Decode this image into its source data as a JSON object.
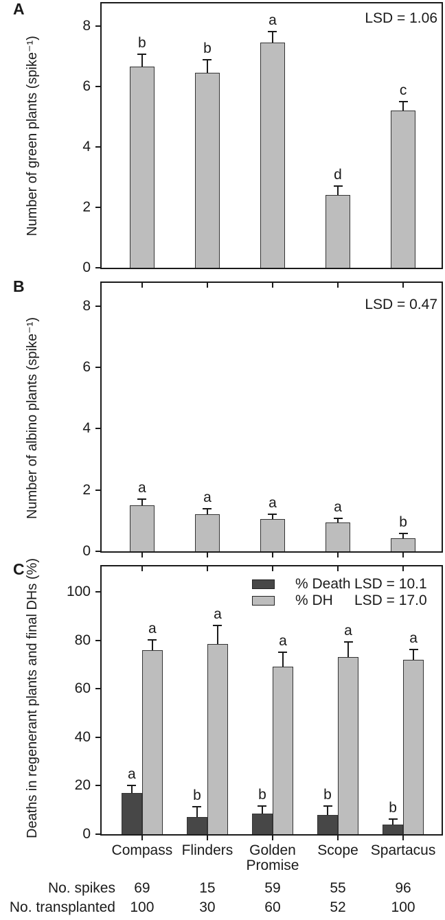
{
  "figure": {
    "panel_letters": [
      "A",
      "B",
      "C"
    ],
    "colors": {
      "bar_light": "#bdbdbd",
      "bar_dark": "#474747",
      "bar_border": "#333333",
      "axis": "#1a1a1a",
      "background": "#ffffff"
    }
  },
  "chart_data": [
    {
      "type": "bar",
      "panel": "A",
      "ylabel": "Number of green plants (spike⁻¹)",
      "annotation": "LSD = 1.06",
      "categories": [
        "Compass",
        "Flinders",
        "Golden Promise",
        "Scope",
        "Spartacus"
      ],
      "values": [
        6.65,
        6.45,
        7.45,
        2.4,
        5.2
      ],
      "errors": [
        0.45,
        0.45,
        0.4,
        0.32,
        0.32
      ],
      "sig_letters": [
        "b",
        "b",
        "a",
        "d",
        "c"
      ],
      "ylim": [
        0,
        8.75
      ],
      "yticks": [
        0,
        2,
        4,
        6,
        8
      ],
      "grid": false,
      "bar_color": "#bdbdbd"
    },
    {
      "type": "bar",
      "panel": "B",
      "ylabel": "Number of albino plants (spike⁻¹)",
      "annotation": "LSD = 0.47",
      "categories": [
        "Compass",
        "Flinders",
        "Golden Promise",
        "Scope",
        "Spartacus"
      ],
      "values": [
        1.5,
        1.2,
        1.05,
        0.95,
        0.42
      ],
      "errors": [
        0.22,
        0.2,
        0.18,
        0.15,
        0.18
      ],
      "sig_letters": [
        "a",
        "a",
        "a",
        "a",
        "b"
      ],
      "ylim": [
        0,
        8.75
      ],
      "yticks": [
        0,
        2,
        4,
        6,
        8
      ],
      "grid": false,
      "bar_color": "#bdbdbd"
    },
    {
      "type": "bar",
      "panel": "C",
      "ylabel": "Deaths in regenerant plants and final DHs (%)",
      "categories": [
        "Compass",
        "Flinders",
        "Golden Promise",
        "Scope",
        "Spartacus"
      ],
      "series": [
        {
          "name": "% Death",
          "lsd_label": "LSD = 10.1",
          "color": "#474747",
          "values": [
            17,
            7,
            8.5,
            8,
            4
          ],
          "errors": [
            3.5,
            4.5,
            3.5,
            4,
            2.5
          ],
          "sig_letters": [
            "a",
            "b",
            "b",
            "b",
            "b"
          ]
        },
        {
          "name": "% DH",
          "lsd_label": "LSD = 17.0",
          "color": "#bdbdbd",
          "values": [
            76,
            78.5,
            69,
            73,
            72
          ],
          "errors": [
            4.5,
            8,
            6.5,
            6.5,
            4.5
          ],
          "sig_letters": [
            "a",
            "a",
            "a",
            "a",
            "a"
          ]
        }
      ],
      "ylim": [
        0,
        110.5
      ],
      "yticks": [
        0,
        20,
        40,
        60,
        80,
        100
      ],
      "grid": false,
      "legend_position": "top-right"
    }
  ],
  "footer": {
    "rows": [
      {
        "label": "No. spikes",
        "values": [
          "69",
          "15",
          "59",
          "55",
          "96"
        ]
      },
      {
        "label": "No. transplanted",
        "values": [
          "100",
          "30",
          "60",
          "52",
          "100"
        ]
      }
    ]
  }
}
